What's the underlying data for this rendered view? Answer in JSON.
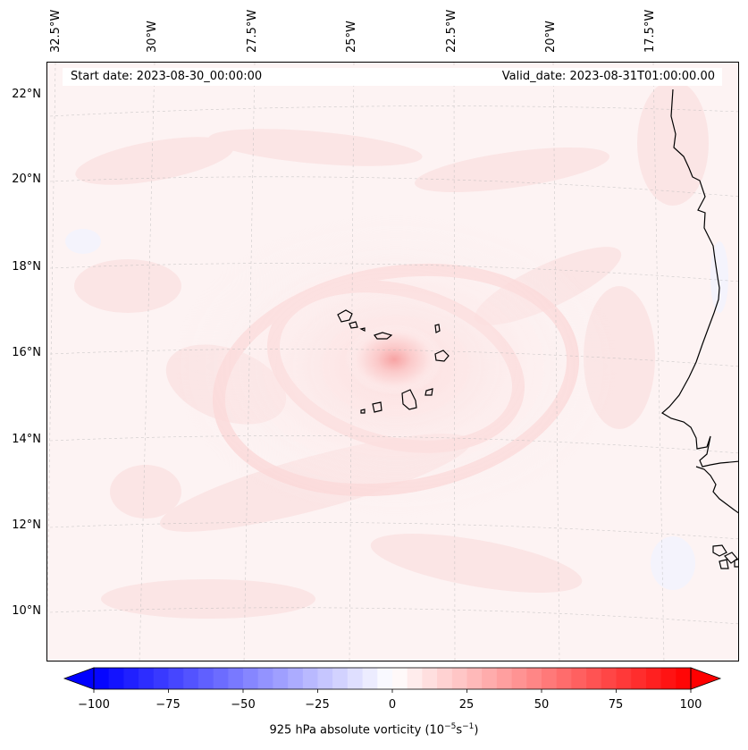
{
  "map": {
    "title_left": "Start date: 2023-08-30_00:00:00",
    "title_right": "Valid_date: 2023-08-31T01:00:00.00",
    "longitude_labels": [
      "32.5°W",
      "30°W",
      "27.5°W",
      "25°W",
      "22.5°W",
      "20°W",
      "17.5°W"
    ],
    "latitude_labels": [
      "22°N",
      "20°N",
      "18°N",
      "16°N",
      "14°N",
      "12°N",
      "10°N"
    ],
    "field": "925 hPa absolute vorticity",
    "features": [
      "Cape Verde islands",
      "West African coastline"
    ]
  },
  "colorbar": {
    "ticks": [
      "−100",
      "−75",
      "−50",
      "−25",
      "0",
      "25",
      "50",
      "75",
      "100"
    ],
    "min": -100,
    "max": 100,
    "step": 5,
    "label_text": "925 hPa absolute vorticity (10",
    "label_exp1": "−5",
    "label_mid": "s",
    "label_exp2": "−1",
    "label_end": ")",
    "colors": {
      "negative": "#0000ff",
      "zero": "#ffffff",
      "positive": "#ff0000"
    }
  }
}
